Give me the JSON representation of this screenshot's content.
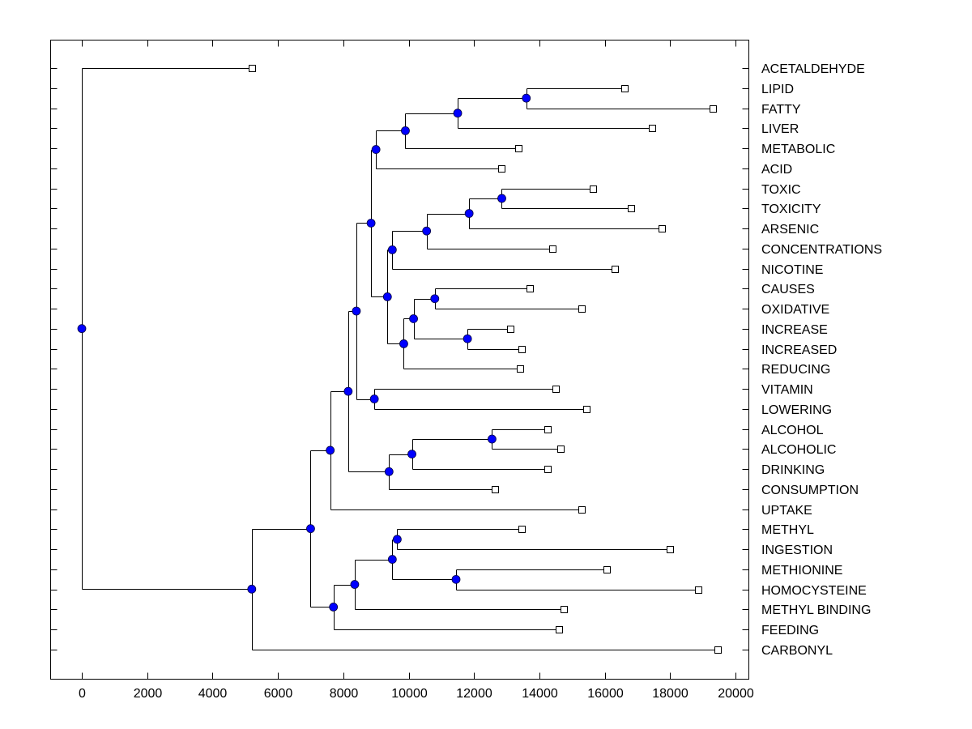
{
  "chart_data": {
    "type": "dendrogram",
    "title": "",
    "xlabel": "",
    "ylabel": "",
    "xlim": [
      -1000,
      20300
    ],
    "x_ticks": [
      0,
      2000,
      4000,
      6000,
      8000,
      10000,
      12000,
      14000,
      16000,
      18000,
      20000
    ],
    "x_tick_labels": [
      "0",
      "2000",
      "4000",
      "6000",
      "8000",
      "10000",
      "12000",
      "14000",
      "16000",
      "18000",
      "20000"
    ],
    "grid": false,
    "node_color": "#0000ff",
    "leaves": [
      {
        "label": "ACETALDEHYDE",
        "x": 5200
      },
      {
        "label": "LIPID",
        "x": 16600
      },
      {
        "label": "FATTY",
        "x": 19300
      },
      {
        "label": "LIVER",
        "x": 17450
      },
      {
        "label": "METABOLIC",
        "x": 13350
      },
      {
        "label": "ACID",
        "x": 12850
      },
      {
        "label": "TOXIC",
        "x": 15650
      },
      {
        "label": "TOXICITY",
        "x": 16800
      },
      {
        "label": "ARSENIC",
        "x": 17750
      },
      {
        "label": "CONCENTRATIONS",
        "x": 14400
      },
      {
        "label": "NICOTINE",
        "x": 16300
      },
      {
        "label": "CAUSES",
        "x": 13700
      },
      {
        "label": "OXIDATIVE",
        "x": 15300
      },
      {
        "label": "INCREASE",
        "x": 13100
      },
      {
        "label": "INCREASED",
        "x": 13450
      },
      {
        "label": "REDUCING",
        "x": 13400
      },
      {
        "label": "VITAMIN",
        "x": 14500
      },
      {
        "label": "LOWERING",
        "x": 15450
      },
      {
        "label": "ALCOHOL",
        "x": 14250
      },
      {
        "label": "ALCOHOLIC",
        "x": 14650
      },
      {
        "label": "DRINKING",
        "x": 14250
      },
      {
        "label": "CONSUMPTION",
        "x": 12650
      },
      {
        "label": "UPTAKE",
        "x": 15300
      },
      {
        "label": "METHYL",
        "x": 13450
      },
      {
        "label": "INGESTION",
        "x": 18000
      },
      {
        "label": "METHIONINE",
        "x": 16050
      },
      {
        "label": "HOMOCYSTEINE",
        "x": 18850
      },
      {
        "label": "METHYL BINDING",
        "x": 14750
      },
      {
        "label": "FEEDING",
        "x": 14600
      },
      {
        "label": "CARBONYL",
        "x": 19450
      }
    ],
    "merges": [
      {
        "id": "n1",
        "x": 13600,
        "children": [
          "LIPID",
          "FATTY"
        ]
      },
      {
        "id": "n2",
        "x": 11500,
        "children": [
          "n1",
          "LIVER"
        ]
      },
      {
        "id": "n3",
        "x": 9900,
        "children": [
          "n2",
          "METABOLIC"
        ]
      },
      {
        "id": "n4",
        "x": 9000,
        "children": [
          "n3",
          "ACID"
        ]
      },
      {
        "id": "n5",
        "x": 12850,
        "children": [
          "TOXIC",
          "TOXICITY"
        ]
      },
      {
        "id": "n6",
        "x": 11850,
        "children": [
          "n5",
          "ARSENIC"
        ]
      },
      {
        "id": "n7",
        "x": 10550,
        "children": [
          "n6",
          "CONCENTRATIONS"
        ]
      },
      {
        "id": "n8",
        "x": 9500,
        "children": [
          "n7",
          "NICOTINE"
        ]
      },
      {
        "id": "n9",
        "x": 10800,
        "children": [
          "CAUSES",
          "OXIDATIVE"
        ]
      },
      {
        "id": "n10",
        "x": 11800,
        "children": [
          "INCREASE",
          "INCREASED"
        ]
      },
      {
        "id": "n11",
        "x": 10150,
        "children": [
          "n9",
          "n10"
        ]
      },
      {
        "id": "n12",
        "x": 9850,
        "children": [
          "n11",
          "REDUCING"
        ]
      },
      {
        "id": "n13",
        "x": 9350,
        "children": [
          "n8",
          "n12"
        ]
      },
      {
        "id": "n14",
        "x": 8850,
        "children": [
          "n4",
          "n13"
        ]
      },
      {
        "id": "n15",
        "x": 8950,
        "children": [
          "VITAMIN",
          "LOWERING"
        ]
      },
      {
        "id": "n16",
        "x": 8400,
        "children": [
          "n14",
          "n15"
        ]
      },
      {
        "id": "n17",
        "x": 12550,
        "children": [
          "ALCOHOL",
          "ALCOHOLIC"
        ]
      },
      {
        "id": "n18",
        "x": 10100,
        "children": [
          "n17",
          "DRINKING"
        ]
      },
      {
        "id": "n19",
        "x": 9400,
        "children": [
          "n18",
          "CONSUMPTION"
        ]
      },
      {
        "id": "n20",
        "x": 8150,
        "children": [
          "n16",
          "n19"
        ]
      },
      {
        "id": "n21",
        "x": 7600,
        "children": [
          "n20",
          "UPTAKE"
        ]
      },
      {
        "id": "n22",
        "x": 9650,
        "children": [
          "METHYL",
          "INGESTION"
        ]
      },
      {
        "id": "n23",
        "x": 11450,
        "children": [
          "METHIONINE",
          "HOMOCYSTEINE"
        ]
      },
      {
        "id": "n24",
        "x": 9500,
        "children": [
          "n22",
          "n23"
        ]
      },
      {
        "id": "n25",
        "x": 8350,
        "children": [
          "n24",
          "METHYL BINDING"
        ]
      },
      {
        "id": "n26",
        "x": 7700,
        "children": [
          "n25",
          "FEEDING"
        ]
      },
      {
        "id": "n27",
        "x": 7000,
        "children": [
          "n21",
          "n26"
        ]
      },
      {
        "id": "n28",
        "x": 5200,
        "children": [
          "n27",
          "CARBONYL"
        ]
      },
      {
        "id": "n29",
        "x": 0,
        "children": [
          "ACETALDEHYDE",
          "n28"
        ]
      }
    ]
  }
}
